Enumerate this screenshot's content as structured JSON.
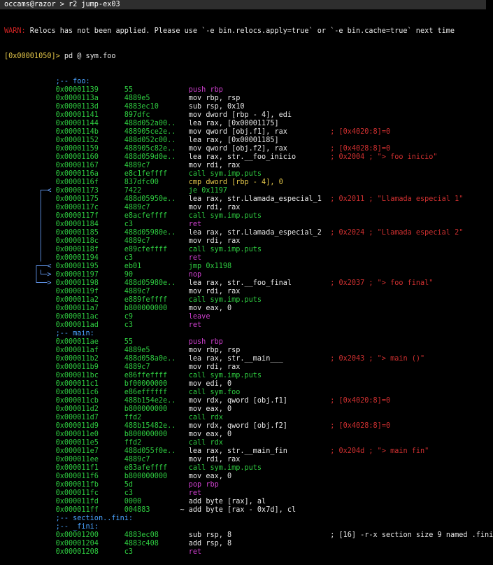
{
  "window": {
    "title": "occams@razor > r2 jump-ex03"
  },
  "warn": {
    "prefix": "WARN:",
    "text": " Relocs has not been applied. Please use `-e bin.relocs.apply=true` or `-e bin.cache=true` next time"
  },
  "prompt": {
    "addr": "[0x00001050]>",
    "cmd": " pd @ sym.foo"
  },
  "lines": [
    {
      "k": "sec",
      "t": ";-- foo:"
    },
    {
      "a": "0x00001139",
      "b": "55",
      "op": "push",
      "arg": "rbp",
      "c": "push"
    },
    {
      "a": "0x0000113a",
      "b": "4889e5",
      "op": "mov",
      "arg": "rbp, rsp",
      "c": "mov"
    },
    {
      "a": "0x0000113d",
      "b": "4883ec10",
      "op": "sub",
      "arg": "rsp, 0x10",
      "c": "sub"
    },
    {
      "a": "0x00001141",
      "b": "897dfc",
      "op": "mov",
      "arg": "dword [rbp - 4], edi",
      "c": "mov"
    },
    {
      "a": "0x00001144",
      "b": "488d052a00..",
      "op": "lea",
      "arg": "rax, [0x00001175]",
      "c": "lea"
    },
    {
      "a": "0x0000114b",
      "b": "488905ce2e..",
      "op": "mov",
      "arg": "qword [obj.f1], rax",
      "c": "mov",
      "cm": "; [0x4020:8]=0"
    },
    {
      "a": "0x00001152",
      "b": "488d052c00..",
      "op": "lea",
      "arg": "rax, [0x00001185]",
      "c": "lea"
    },
    {
      "a": "0x00001159",
      "b": "488905c82e..",
      "op": "mov",
      "arg": "qword [obj.f2], rax",
      "c": "mov",
      "cm": "; [0x4028:8]=0"
    },
    {
      "a": "0x00001160",
      "b": "488d059d0e..",
      "op": "lea",
      "arg": "rax, str.__foo_inicio",
      "c": "lea",
      "cm": "; 0x2004 ; \"> foo inicio\""
    },
    {
      "a": "0x00001167",
      "b": "4889c7",
      "op": "mov",
      "arg": "rdi, rax",
      "c": "mov"
    },
    {
      "a": "0x0000116a",
      "b": "e8c1feffff",
      "op": "call",
      "arg": "sym.imp.puts",
      "c": "call"
    },
    {
      "a": "0x0000116f",
      "b": "837dfc00",
      "op": "cmp",
      "arg": "dword [rbp - 4], 0",
      "c": "cmp"
    },
    {
      "a": "0x00001173",
      "b": "7422",
      "op": "je",
      "arg": "0x1197",
      "c": "je",
      "g": "je"
    },
    {
      "a": "0x00001175",
      "b": "488d05950e..",
      "op": "lea",
      "arg": "rax, str.Llamada_especial_1",
      "c": "lea",
      "cm": "; 0x2011 ; \"Llamada especial 1\"",
      "g": "bar"
    },
    {
      "a": "0x0000117c",
      "b": "4889c7",
      "op": "mov",
      "arg": "rdi, rax",
      "c": "mov",
      "g": "bar"
    },
    {
      "a": "0x0000117f",
      "b": "e8acfeffff",
      "op": "call",
      "arg": "sym.imp.puts",
      "c": "call",
      "g": "bar"
    },
    {
      "a": "0x00001184",
      "b": "c3",
      "op": "ret",
      "arg": "",
      "c": "ret",
      "g": "bar"
    },
    {
      "a": "0x00001185",
      "b": "488d05980e..",
      "op": "lea",
      "arg": "rax, str.Llamada_especial_2",
      "c": "lea",
      "cm": "; 0x2024 ; \"Llamada especial 2\"",
      "g": "bar"
    },
    {
      "a": "0x0000118c",
      "b": "4889c7",
      "op": "mov",
      "arg": "rdi, rax",
      "c": "mov",
      "g": "bar"
    },
    {
      "a": "0x0000118f",
      "b": "e89cfeffff",
      "op": "call",
      "arg": "sym.imp.puts",
      "c": "call",
      "g": "bar"
    },
    {
      "a": "0x00001194",
      "b": "c3",
      "op": "ret",
      "arg": "",
      "c": "ret",
      "g": "bar"
    },
    {
      "a": "0x00001195",
      "b": "eb01",
      "op": "jmp",
      "arg": "0x1198",
      "c": "jmp",
      "g": "jmp"
    },
    {
      "a": "0x00001197",
      "b": "90",
      "op": "nop",
      "arg": "",
      "c": "nop",
      "g": "nop"
    },
    {
      "a": "0x00001198",
      "b": "488d05980e..",
      "op": "lea",
      "arg": "rax, str.__foo_final",
      "c": "lea",
      "cm": "; 0x2037 ; \"> foo final\"",
      "g": "tgt"
    },
    {
      "a": "0x0000119f",
      "b": "4889c7",
      "op": "mov",
      "arg": "rdi, rax",
      "c": "mov"
    },
    {
      "a": "0x000011a2",
      "b": "e889feffff",
      "op": "call",
      "arg": "sym.imp.puts",
      "c": "call"
    },
    {
      "a": "0x000011a7",
      "b": "b800000000",
      "op": "mov",
      "arg": "eax, 0",
      "c": "mov"
    },
    {
      "a": "0x000011ac",
      "b": "c9",
      "op": "leave",
      "arg": "",
      "c": "leave"
    },
    {
      "a": "0x000011ad",
      "b": "c3",
      "op": "ret",
      "arg": "",
      "c": "ret"
    },
    {
      "k": "sec",
      "t": ";-- main:"
    },
    {
      "a": "0x000011ae",
      "b": "55",
      "op": "push",
      "arg": "rbp",
      "c": "push"
    },
    {
      "a": "0x000011af",
      "b": "4889e5",
      "op": "mov",
      "arg": "rbp, rsp",
      "c": "mov"
    },
    {
      "a": "0x000011b2",
      "b": "488d058a0e..",
      "op": "lea",
      "arg": "rax, str.__main___",
      "c": "lea",
      "cm": "; 0x2043 ; \"> main ()\""
    },
    {
      "a": "0x000011b9",
      "b": "4889c7",
      "op": "mov",
      "arg": "rdi, rax",
      "c": "mov"
    },
    {
      "a": "0x000011bc",
      "b": "e86ffeffff",
      "op": "call",
      "arg": "sym.imp.puts",
      "c": "call"
    },
    {
      "a": "0x000011c1",
      "b": "bf00000000",
      "op": "mov",
      "arg": "edi, 0",
      "c": "mov"
    },
    {
      "a": "0x000011c6",
      "b": "e86effffff",
      "op": "call",
      "arg": "sym.foo",
      "c": "call"
    },
    {
      "a": "0x000011cb",
      "b": "488b154e2e..",
      "op": "mov",
      "arg": "rdx, qword [obj.f1]",
      "c": "mov",
      "cm": "; [0x4020:8]=0"
    },
    {
      "a": "0x000011d2",
      "b": "b800000000",
      "op": "mov",
      "arg": "eax, 0",
      "c": "mov"
    },
    {
      "a": "0x000011d7",
      "b": "ffd2",
      "op": "call",
      "arg": "rdx",
      "c": "call"
    },
    {
      "a": "0x000011d9",
      "b": "488b15482e..",
      "op": "mov",
      "arg": "rdx, qword [obj.f2]",
      "c": "mov",
      "cm": "; [0x4028:8]=0"
    },
    {
      "a": "0x000011e0",
      "b": "b800000000",
      "op": "mov",
      "arg": "eax, 0",
      "c": "mov"
    },
    {
      "a": "0x000011e5",
      "b": "ffd2",
      "op": "call",
      "arg": "rdx",
      "c": "call"
    },
    {
      "a": "0x000011e7",
      "b": "488d055f0e..",
      "op": "lea",
      "arg": "rax, str.__main_fin",
      "c": "lea",
      "cm": "; 0x204d ; \"> main fin\""
    },
    {
      "a": "0x000011ee",
      "b": "4889c7",
      "op": "mov",
      "arg": "rdi, rax",
      "c": "mov"
    },
    {
      "a": "0x000011f1",
      "b": "e83afeffff",
      "op": "call",
      "arg": "sym.imp.puts",
      "c": "call"
    },
    {
      "a": "0x000011f6",
      "b": "b800000000",
      "op": "mov",
      "arg": "eax, 0",
      "c": "mov"
    },
    {
      "a": "0x000011fb",
      "b": "5d",
      "op": "pop",
      "arg": "rbp",
      "c": "pop"
    },
    {
      "a": "0x000011fc",
      "b": "c3",
      "op": "ret",
      "arg": "",
      "c": "ret"
    },
    {
      "a": "0x000011fd",
      "b": "0000",
      "op": "add",
      "arg": "byte [rax], al",
      "c": "add"
    },
    {
      "a": "0x000011ff",
      "b": "004883",
      "op": "add",
      "arg": "byte [rax - 0x7d], cl",
      "c": "add",
      "pre": "~ "
    },
    {
      "k": "sec",
      "t": ";-- section..fini:"
    },
    {
      "k": "sec",
      "t": ";-- _fini:"
    },
    {
      "a": "0x00001200",
      "b": "4883ec08",
      "op": "sub",
      "arg": "rsp, 8",
      "c": "sub",
      "cmw": "; [16] -r-x section size 9 named .fini"
    },
    {
      "a": "0x00001204",
      "b": "4883c408",
      "op": "add",
      "arg": "rsp, 8",
      "c": "add"
    },
    {
      "a": "0x00001208",
      "b": "c3",
      "op": "ret",
      "arg": "",
      "c": "ret"
    }
  ]
}
